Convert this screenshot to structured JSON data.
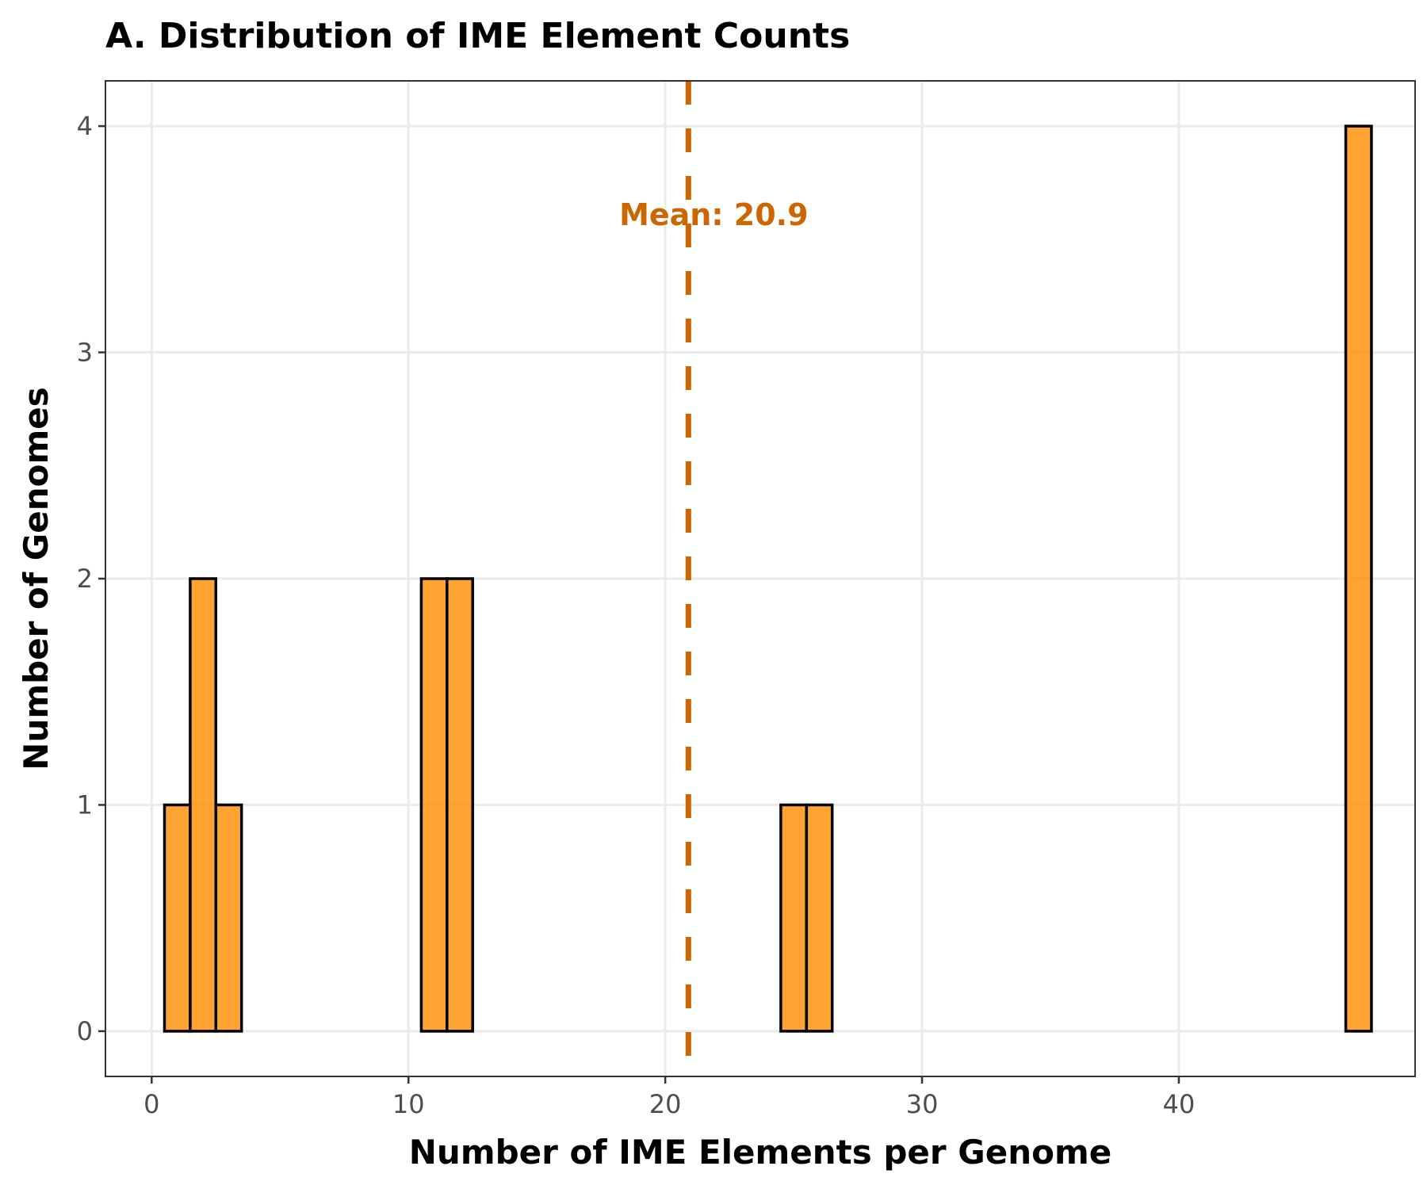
{
  "chart_data": {
    "type": "bar",
    "title": "A. Distribution of IME Element Counts",
    "xlabel": "Number of IME Elements per Genome",
    "ylabel": "Number of Genomes",
    "xlim": [
      -1.8,
      49.2
    ],
    "ylim": [
      -0.2,
      4.2
    ],
    "x_ticks": [
      0,
      10,
      20,
      30,
      40
    ],
    "y_ticks": [
      0,
      1,
      2,
      3,
      4
    ],
    "grid": true,
    "bin_width": 1,
    "bins": [
      {
        "x": 1,
        "count": 1
      },
      {
        "x": 2,
        "count": 2
      },
      {
        "x": 3,
        "count": 1
      },
      {
        "x": 4,
        "count": 0
      },
      {
        "x": 5,
        "count": 0
      },
      {
        "x": 6,
        "count": 0
      },
      {
        "x": 7,
        "count": 0
      },
      {
        "x": 8,
        "count": 0
      },
      {
        "x": 9,
        "count": 0
      },
      {
        "x": 10,
        "count": 0
      },
      {
        "x": 11,
        "count": 2
      },
      {
        "x": 12,
        "count": 2
      },
      {
        "x": 13,
        "count": 0
      },
      {
        "x": 14,
        "count": 0
      },
      {
        "x": 15,
        "count": 0
      },
      {
        "x": 16,
        "count": 0
      },
      {
        "x": 17,
        "count": 0
      },
      {
        "x": 18,
        "count": 0
      },
      {
        "x": 19,
        "count": 0
      },
      {
        "x": 20,
        "count": 0
      },
      {
        "x": 21,
        "count": 0
      },
      {
        "x": 22,
        "count": 0
      },
      {
        "x": 23,
        "count": 0
      },
      {
        "x": 24,
        "count": 0
      },
      {
        "x": 25,
        "count": 1
      },
      {
        "x": 26,
        "count": 1
      },
      {
        "x": 27,
        "count": 0
      },
      {
        "x": 28,
        "count": 0
      },
      {
        "x": 29,
        "count": 0
      },
      {
        "x": 30,
        "count": 0
      },
      {
        "x": 31,
        "count": 0
      },
      {
        "x": 32,
        "count": 0
      },
      {
        "x": 33,
        "count": 0
      },
      {
        "x": 34,
        "count": 0
      },
      {
        "x": 35,
        "count": 0
      },
      {
        "x": 36,
        "count": 0
      },
      {
        "x": 37,
        "count": 0
      },
      {
        "x": 38,
        "count": 0
      },
      {
        "x": 39,
        "count": 0
      },
      {
        "x": 40,
        "count": 0
      },
      {
        "x": 41,
        "count": 0
      },
      {
        "x": 42,
        "count": 0
      },
      {
        "x": 43,
        "count": 0
      },
      {
        "x": 44,
        "count": 0
      },
      {
        "x": 45,
        "count": 0
      },
      {
        "x": 46,
        "count": 0
      },
      {
        "x": 47,
        "count": 4
      }
    ],
    "mean": 20.9,
    "mean_label": "Mean: 20.9",
    "bar_color": "#ff8c00",
    "bar_outline_color": "#000000",
    "mean_line_color": "#cc6600"
  }
}
